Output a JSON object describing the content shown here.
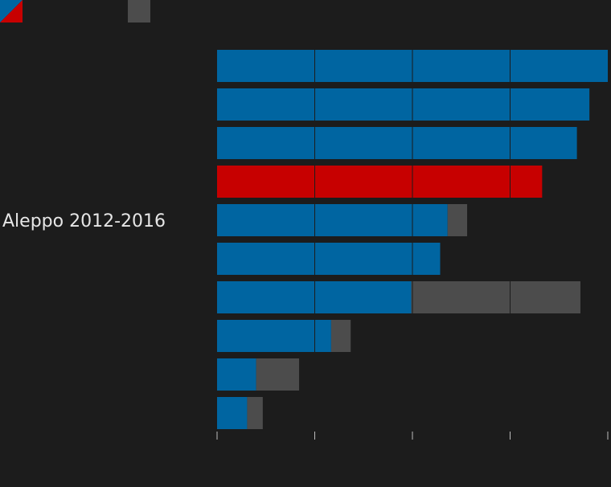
{
  "chart_data": {
    "type": "bar",
    "orientation": "horizontal",
    "stacked": true,
    "categories": [
      "",
      "",
      "",
      "",
      "Aleppo 2012-2016",
      "",
      "",
      "",
      "",
      ""
    ],
    "highlighted_index": 3,
    "series": [
      {
        "values": [
          100,
          95.3,
          92.1,
          83.2,
          59,
          57.1,
          49.7,
          29.2,
          10,
          7.7
        ]
      },
      {
        "values": [
          0,
          0,
          0,
          0,
          5,
          0,
          43.3,
          5,
          11,
          4
        ]
      }
    ],
    "xlim": [
      0,
      100
    ],
    "x_ticks": [
      "",
      "",
      "",
      "",
      ""
    ],
    "legend_position": "top-left",
    "grid": true,
    "colors": {
      "primary": "#0065a1",
      "highlight": "#c70000",
      "secondary": "#4c4c4c",
      "background": "#1c1c1c",
      "gridline": "#1c1c1c",
      "tick": "#bdbdbd",
      "label": "#e6e6e6"
    }
  }
}
